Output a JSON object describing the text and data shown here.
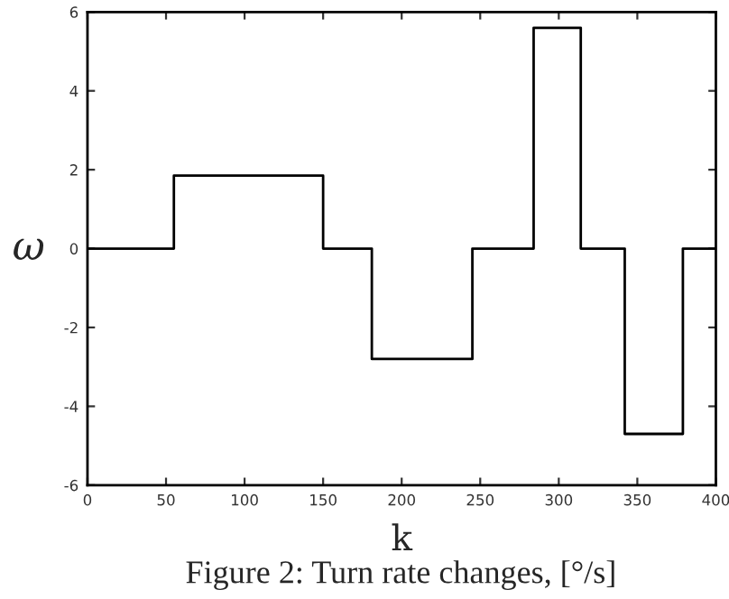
{
  "chart_data": {
    "type": "step",
    "xlabel": "k",
    "ylabel": "ω",
    "annotations": [
      "Figure 2: Turn rate changes, [°/s]"
    ],
    "x": [
      0,
      55,
      150,
      181,
      245,
      284,
      314,
      342,
      379,
      400
    ],
    "series": [
      {
        "color": "#000000",
        "values": [
          0,
          1.85,
          0,
          -2.8,
          0,
          5.6,
          0,
          -4.7,
          0,
          0
        ]
      }
    ],
    "xlim": [
      0,
      400
    ],
    "xticks": [
      0,
      50,
      100,
      150,
      200,
      250,
      300,
      350,
      400
    ],
    "ylim": [
      -6,
      6
    ],
    "yticks": [
      -6,
      -4,
      -2,
      0,
      2,
      4,
      6
    ],
    "grid": false,
    "legend": false,
    "marker": "none",
    "line_style": "solid"
  }
}
